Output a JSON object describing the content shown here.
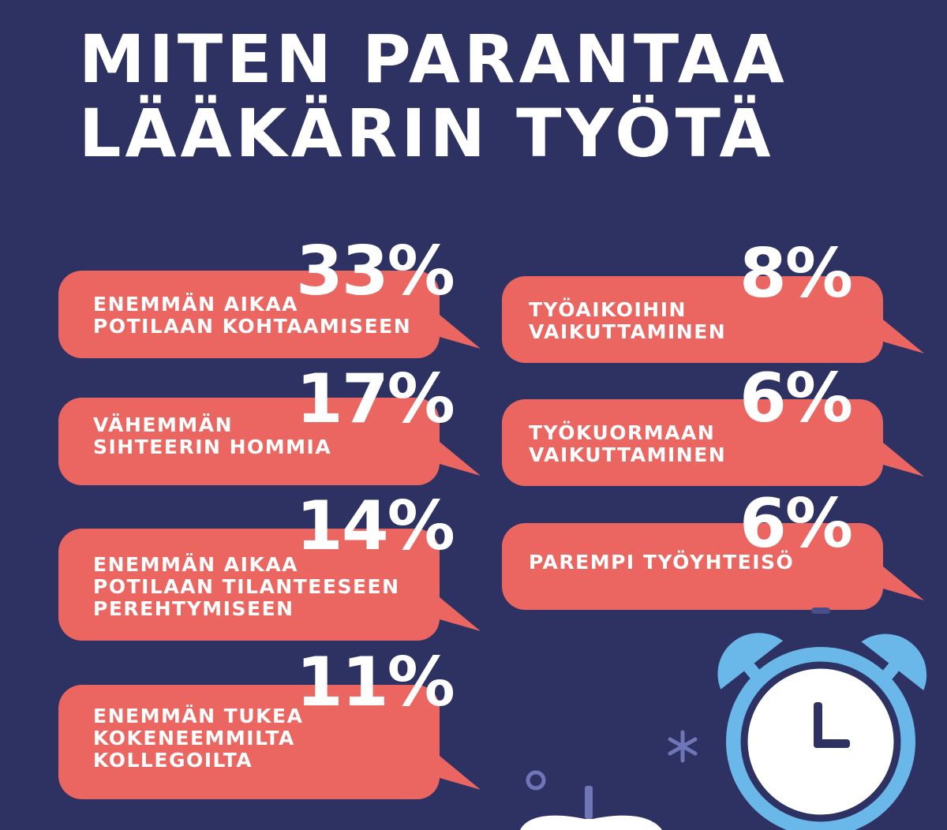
{
  "title": {
    "line1": "MITEN PARANTAA",
    "line2": "LÄÄKÄRIN TYÖTÄ"
  },
  "colors": {
    "background": "#2e3263",
    "bubble": "#eb6661",
    "text": "#ffffff",
    "clock_blue": "#6ab8ea"
  },
  "items": [
    {
      "percent": "33%",
      "value": 33,
      "lines": [
        "ENEMMÄN AIKAA",
        "POTILAAN KOHTAAMISEEN"
      ]
    },
    {
      "percent": "17%",
      "value": 17,
      "lines": [
        "VÄHEMMÄN",
        "SIHTEERIN HOMMIA"
      ]
    },
    {
      "percent": "14%",
      "value": 14,
      "lines": [
        "ENEMMÄN AIKAA",
        "POTILAAN TILANTEESEEN",
        "PEREHTYMISEEN"
      ]
    },
    {
      "percent": "11%",
      "value": 11,
      "lines": [
        "ENEMMÄN TUKEA",
        "KOKENEEMMILTA",
        "KOLLEGOILTA"
      ]
    },
    {
      "percent": "8%",
      "value": 8,
      "lines": [
        "TYÖAIKOIHIN",
        "VAIKUTTAMINEN"
      ]
    },
    {
      "percent": "6%",
      "value": 6,
      "lines": [
        "TYÖKUORMAAN",
        "VAIKUTTAMINEN"
      ]
    },
    {
      "percent": "6%",
      "value": 6,
      "lines": [
        "PAREMPI TYÖYHTEISÖ"
      ]
    }
  ],
  "icons": {
    "clock": "alarm-clock-icon",
    "apple": "apple-icon",
    "sparkle": "sparkle-icon",
    "circle": "circle-icon"
  }
}
